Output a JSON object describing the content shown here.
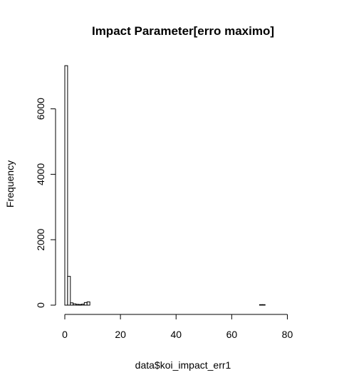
{
  "chart_data": {
    "type": "bar",
    "title": "Impact Parameter[erro maximo]",
    "xlabel": "data$koi_impact_err1",
    "ylabel": "Frequency",
    "xlim": [
      0,
      85
    ],
    "ylim": [
      0,
      7300
    ],
    "x_ticks": [
      0,
      20,
      40,
      60,
      80
    ],
    "y_ticks": [
      0,
      2000,
      4000,
      6000
    ],
    "bin_width": 1,
    "bins": [
      {
        "x0": 0,
        "x1": 1,
        "value": 7320
      },
      {
        "x0": 1,
        "x1": 2,
        "value": 880
      },
      {
        "x0": 2,
        "x1": 3,
        "value": 70
      },
      {
        "x0": 3,
        "x1": 4,
        "value": 40
      },
      {
        "x0": 4,
        "x1": 5,
        "value": 25
      },
      {
        "x0": 5,
        "x1": 6,
        "value": 20
      },
      {
        "x0": 6,
        "x1": 7,
        "value": 30
      },
      {
        "x0": 7,
        "x1": 8,
        "value": 80
      },
      {
        "x0": 8,
        "x1": 9,
        "value": 100
      },
      {
        "x0": 70,
        "x1": 71,
        "value": 15
      },
      {
        "x0": 71,
        "x1": 72,
        "value": 15
      }
    ],
    "fill_color": "#ffffff",
    "stroke_color": "#000000",
    "grid": false,
    "legend": "none"
  }
}
